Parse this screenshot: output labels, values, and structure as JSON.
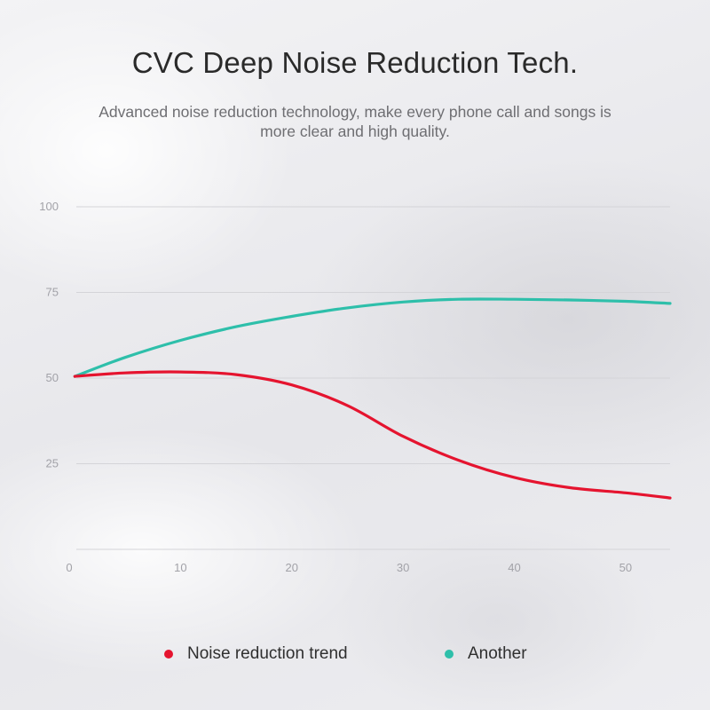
{
  "header": {
    "title": "CVC Deep Noise Reduction Tech.",
    "subtitle_line1": "Advanced noise reduction technology, make every phone call and songs is",
    "subtitle_line2": "more clear and high quality."
  },
  "colors": {
    "red_series": "#e5142f",
    "teal_series": "#2ebfaa",
    "grid": "#d4d4d8"
  },
  "chart_data": {
    "type": "line",
    "title": "",
    "xlabel": "",
    "ylabel": "",
    "xlim": [
      0,
      54
    ],
    "ylim": [
      0,
      100
    ],
    "x_ticks": [
      0,
      10,
      20,
      30,
      40,
      50
    ],
    "y_ticks": [
      25,
      50,
      75,
      100
    ],
    "grid": true,
    "legend_position": "bottom",
    "series": [
      {
        "name": "Noise reduction trend",
        "color": "#e5142f",
        "x": [
          0.5,
          5,
          10,
          15,
          20,
          25,
          30,
          35,
          40,
          45,
          50,
          54
        ],
        "y": [
          50.5,
          51.5,
          51.8,
          51,
          48,
          42,
          33,
          26,
          21,
          18,
          16.5,
          15
        ]
      },
      {
        "name": "Another",
        "color": "#2ebfaa",
        "x": [
          0.5,
          5,
          10,
          15,
          20,
          25,
          30,
          35,
          40,
          45,
          50,
          54
        ],
        "y": [
          50.5,
          56,
          61,
          65,
          68,
          70.5,
          72.2,
          73,
          73,
          72.8,
          72.4,
          71.8
        ]
      }
    ]
  }
}
